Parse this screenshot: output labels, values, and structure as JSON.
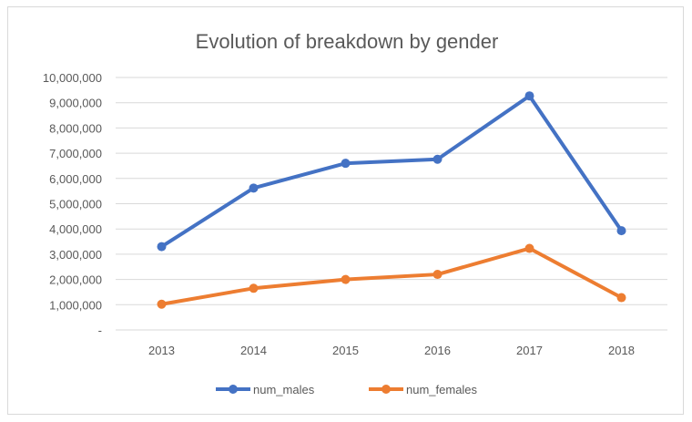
{
  "chart_data": {
    "type": "line",
    "title": "Evolution of breakdown by gender",
    "categories": [
      "2013",
      "2014",
      "2015",
      "2016",
      "2017",
      "2018"
    ],
    "y_ticks": [
      "-",
      "1,000,000",
      "2,000,000",
      "3,000,000",
      "4,000,000",
      "5,000,000",
      "6,000,000",
      "7,000,000",
      "8,000,000",
      "9,000,000",
      "10,000,000"
    ],
    "ylim": [
      0,
      10000000
    ],
    "grid": true,
    "legend_position": "bottom",
    "series": [
      {
        "name": "num_males",
        "color": "#4472c4",
        "values": [
          3300000,
          5620000,
          6600000,
          6760000,
          9270000,
          3930000
        ]
      },
      {
        "name": "num_females",
        "color": "#ed7d31",
        "values": [
          1020000,
          1650000,
          2000000,
          2200000,
          3230000,
          1280000
        ]
      }
    ]
  }
}
